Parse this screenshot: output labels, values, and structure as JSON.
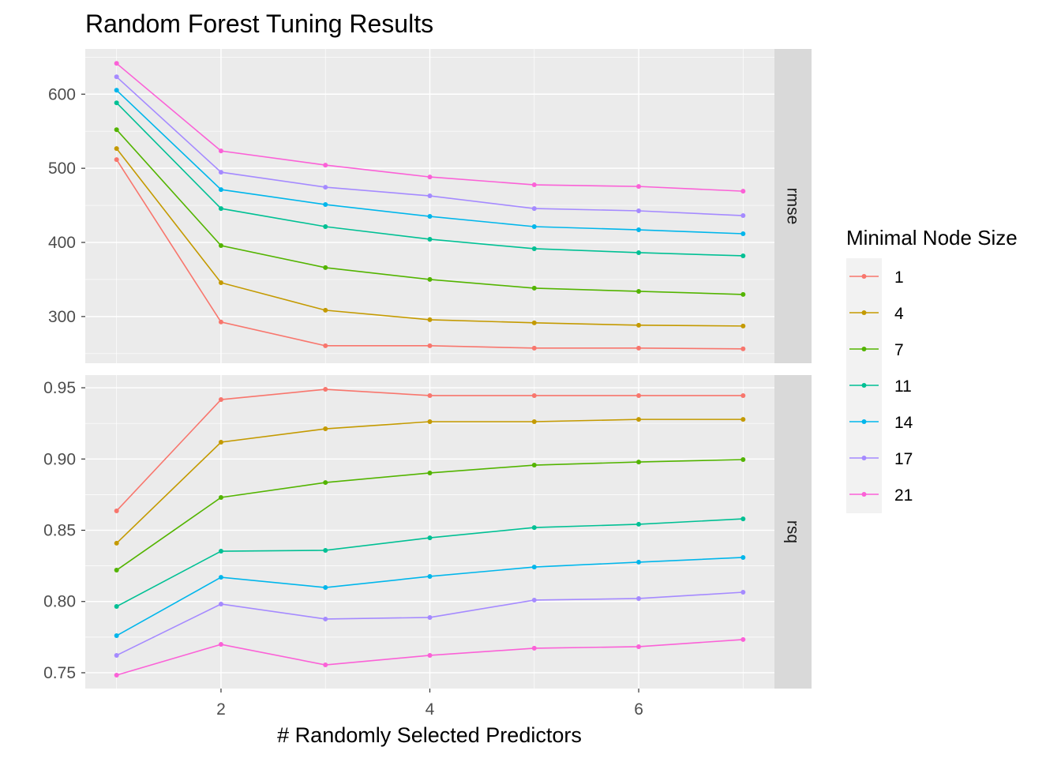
{
  "chart_data": {
    "type": "line",
    "title": "Random Forest Tuning Results",
    "xlabel": "# Randomly Selected Predictors",
    "ylabel": "",
    "x": [
      1,
      2,
      3,
      4,
      5,
      6,
      7
    ],
    "xlim": [
      0.7,
      7.3
    ],
    "x_ticks": [
      2,
      4,
      6
    ],
    "grid": true,
    "legend": {
      "title": "Minimal Node Size",
      "position": "right"
    },
    "panels": [
      {
        "strip": "rmse",
        "ylim": [
          237,
          661
        ],
        "y_ticks": [
          300,
          400,
          500,
          600
        ],
        "series": [
          {
            "name": "1",
            "values": [
              511.7,
              292.6,
              260.6,
              260.6,
              257.4,
              257.4,
              256.4
            ]
          },
          {
            "name": "4",
            "values": [
              526.6,
              345.7,
              308.5,
              295.7,
              291.5,
              288.3,
              287.2
            ]
          },
          {
            "name": "7",
            "values": [
              552.1,
              395.7,
              366.0,
              350.0,
              338.3,
              334.0,
              329.8
            ]
          },
          {
            "name": "11",
            "values": [
              588.3,
              445.7,
              421.3,
              404.3,
              391.5,
              386.2,
              381.9
            ]
          },
          {
            "name": "14",
            "values": [
              605.3,
              471.3,
              451.1,
              435.1,
              421.3,
              417.0,
              411.7
            ]
          },
          {
            "name": "17",
            "values": [
              623.4,
              494.7,
              474.5,
              462.8,
              445.7,
              442.6,
              436.2
            ]
          },
          {
            "name": "21",
            "values": [
              641.5,
              523.4,
              504.3,
              488.3,
              477.7,
              475.5,
              469.1
            ]
          }
        ]
      },
      {
        "strip": "rsq",
        "ylim": [
          0.7389,
          0.9589
        ],
        "y_ticks": [
          0.75,
          0.8,
          0.85,
          0.9,
          0.95
        ],
        "y_tick_labels": [
          "0.75",
          "0.80",
          "0.85",
          "0.90",
          "0.95"
        ],
        "series": [
          {
            "name": "1",
            "values": [
              0.8636,
              0.9417,
              0.9489,
              0.9445,
              0.9445,
              0.9445,
              0.9445
            ]
          },
          {
            "name": "4",
            "values": [
              0.8409,
              0.9118,
              0.9212,
              0.9262,
              0.9262,
              0.9278,
              0.9278
            ]
          },
          {
            "name": "7",
            "values": [
              0.822,
              0.873,
              0.8835,
              0.8902,
              0.8957,
              0.8979,
              0.8996
            ]
          },
          {
            "name": "11",
            "values": [
              0.7965,
              0.8353,
              0.8359,
              0.8447,
              0.8519,
              0.8542,
              0.858
            ]
          },
          {
            "name": "14",
            "values": [
              0.776,
              0.817,
              0.8098,
              0.8176,
              0.8242,
              0.8276,
              0.8309
            ]
          },
          {
            "name": "17",
            "values": [
              0.7622,
              0.7982,
              0.7877,
              0.7888,
              0.801,
              0.8021,
              0.8065
            ]
          },
          {
            "name": "21",
            "values": [
              0.7483,
              0.7699,
              0.7555,
              0.7622,
              0.7672,
              0.7683,
              0.7733
            ]
          }
        ]
      }
    ],
    "colors": [
      "#F8766D",
      "#C49A00",
      "#53B400",
      "#00C094",
      "#00B6EB",
      "#A58AFF",
      "#FB61D7"
    ]
  }
}
